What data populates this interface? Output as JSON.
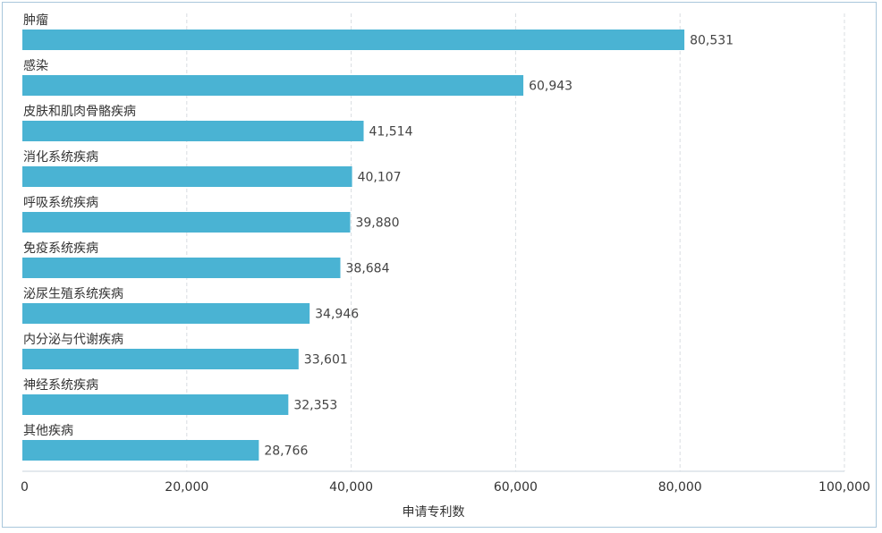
{
  "chart_data": {
    "type": "bar",
    "orientation": "horizontal",
    "categories": [
      "肿瘤",
      "感染",
      "皮肤和肌肉骨骼疾病",
      "消化系统疾病",
      "呼吸系统疾病",
      "免疫系统疾病",
      "泌尿生殖系统疾病",
      "内分泌与代谢疾病",
      "神经系统疾病",
      "其他疾病"
    ],
    "values": [
      80531,
      60943,
      41514,
      40107,
      39880,
      38684,
      34946,
      33601,
      32353,
      28766
    ],
    "value_labels": [
      "80,531",
      "60,943",
      "41,514",
      "40,107",
      "39,880",
      "38,684",
      "34,946",
      "33,601",
      "32,353",
      "28,766"
    ],
    "xlabel": "申请专利数",
    "xlim": [
      0,
      100000
    ],
    "xticks": [
      0,
      20000,
      40000,
      60000,
      80000,
      100000
    ],
    "xtick_labels": [
      "0",
      "20,000",
      "40,000",
      "60,000",
      "80,000",
      "100,000"
    ],
    "grid": "vertical dashed",
    "bar_color": "#4ab3d3"
  }
}
